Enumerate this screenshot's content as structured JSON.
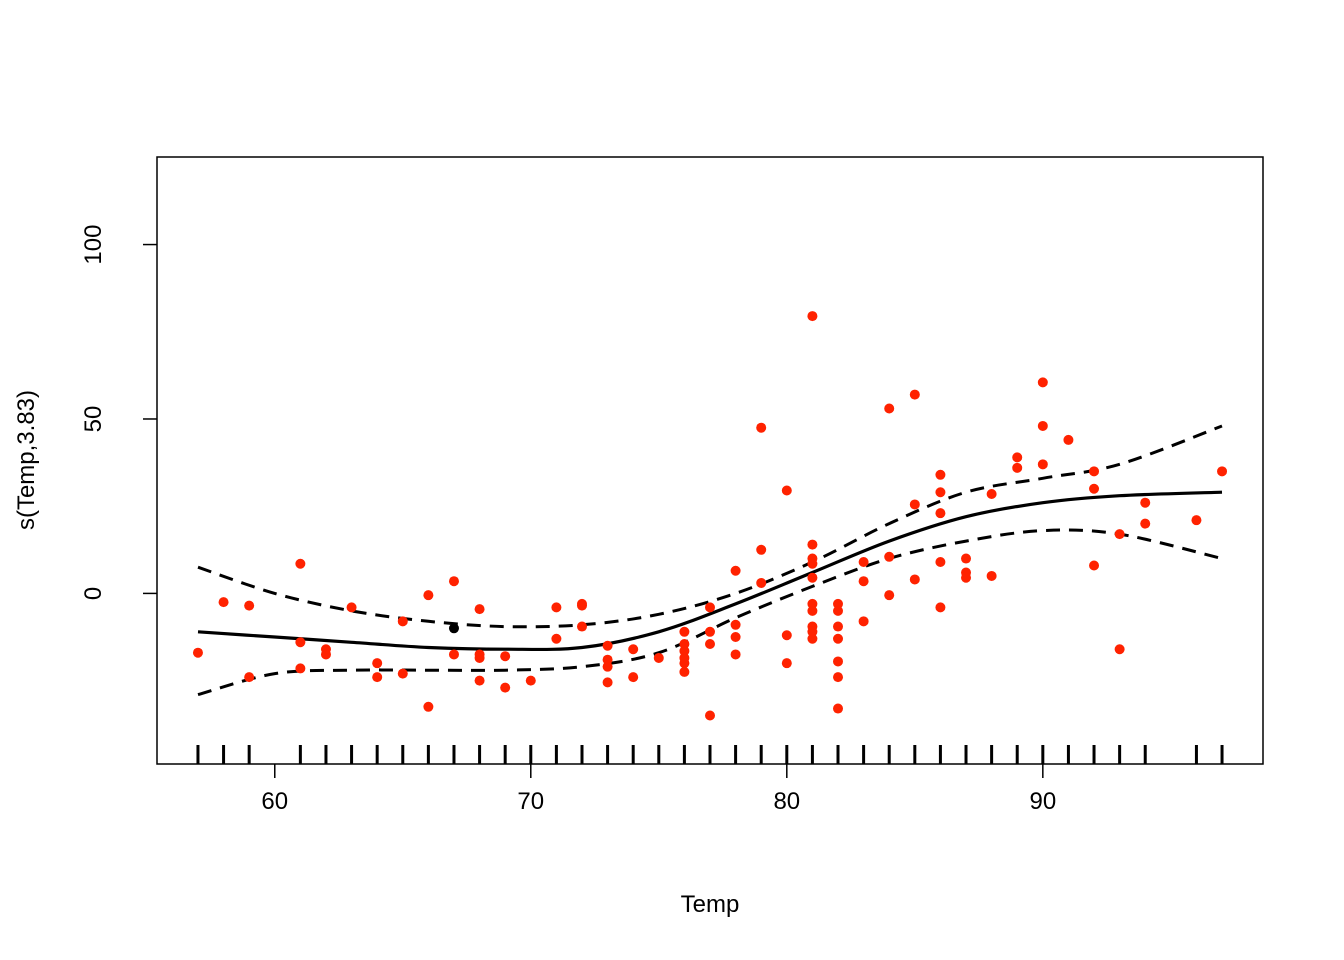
{
  "chart_data": {
    "type": "scatter",
    "title": "",
    "xlabel": "Temp",
    "ylabel": "s(Temp,3.83)",
    "xlim": [
      55.4,
      98.6
    ],
    "ylim": [
      -48.9,
      125.1
    ],
    "x_ticks": [
      60,
      70,
      80,
      90
    ],
    "y_ticks": [
      0,
      50,
      100
    ],
    "x_tick_labels": [
      "60",
      "70",
      "80",
      "90"
    ],
    "y_tick_labels": [
      "0",
      "50",
      "100"
    ],
    "grid": false,
    "legend": "none",
    "colors": {
      "points": "#ff2200",
      "highlight": "#000000",
      "lines": "#000000"
    },
    "smooth_fit": {
      "x": [
        57,
        60,
        63,
        66,
        69,
        72,
        75,
        78,
        81,
        84,
        87,
        90,
        93,
        97
      ],
      "y": [
        -11,
        -12.5,
        -14,
        -15.5,
        -16,
        -15.5,
        -11,
        -3,
        6,
        15,
        22,
        26,
        28,
        29
      ]
    },
    "upper_ci": {
      "x": [
        57,
        60,
        63,
        66,
        69,
        72,
        75,
        78,
        81,
        84,
        87,
        90,
        93,
        97
      ],
      "y": [
        7.5,
        0,
        -5,
        -8,
        -9.5,
        -9,
        -6,
        0,
        9,
        20,
        29,
        33,
        37,
        48
      ]
    },
    "lower_ci": {
      "x": [
        57,
        60,
        63,
        66,
        69,
        72,
        75,
        78,
        81,
        84,
        87,
        90,
        93,
        97
      ],
      "y": [
        -29,
        -23,
        -22,
        -22,
        -22,
        -21,
        -17,
        -7,
        2,
        10,
        15,
        18,
        17,
        10
      ]
    },
    "points": [
      {
        "x": 57,
        "y": -17
      },
      {
        "x": 58,
        "y": -2.5
      },
      {
        "x": 59,
        "y": -3.5
      },
      {
        "x": 59,
        "y": -24
      },
      {
        "x": 61,
        "y": 8.5
      },
      {
        "x": 61,
        "y": -14
      },
      {
        "x": 61,
        "y": -21.5
      },
      {
        "x": 62,
        "y": -16
      },
      {
        "x": 62,
        "y": -17.5
      },
      {
        "x": 63,
        "y": -4
      },
      {
        "x": 64,
        "y": -20
      },
      {
        "x": 64,
        "y": -24
      },
      {
        "x": 65,
        "y": -8
      },
      {
        "x": 65,
        "y": -23
      },
      {
        "x": 66,
        "y": -0.5
      },
      {
        "x": 66,
        "y": -32.5
      },
      {
        "x": 67,
        "y": 3.5
      },
      {
        "x": 67,
        "y": -17.5
      },
      {
        "x": 68,
        "y": -4.5
      },
      {
        "x": 68,
        "y": -17.5
      },
      {
        "x": 68,
        "y": -18.5
      },
      {
        "x": 68,
        "y": -25
      },
      {
        "x": 69,
        "y": -18
      },
      {
        "x": 69,
        "y": -27
      },
      {
        "x": 70,
        "y": -25
      },
      {
        "x": 71,
        "y": -4
      },
      {
        "x": 71,
        "y": -13
      },
      {
        "x": 72,
        "y": -3
      },
      {
        "x": 72,
        "y": -3.5
      },
      {
        "x": 72,
        "y": -9.5
      },
      {
        "x": 73,
        "y": -15
      },
      {
        "x": 73,
        "y": -19
      },
      {
        "x": 73,
        "y": -21
      },
      {
        "x": 73,
        "y": -25.5
      },
      {
        "x": 74,
        "y": -16
      },
      {
        "x": 74,
        "y": -24
      },
      {
        "x": 75,
        "y": -18.5
      },
      {
        "x": 76,
        "y": -11
      },
      {
        "x": 76,
        "y": -14.5
      },
      {
        "x": 76,
        "y": -16.5
      },
      {
        "x": 76,
        "y": -18.5
      },
      {
        "x": 76,
        "y": -20
      },
      {
        "x": 76,
        "y": -22.5
      },
      {
        "x": 77,
        "y": -4
      },
      {
        "x": 77,
        "y": -11
      },
      {
        "x": 77,
        "y": -14.5
      },
      {
        "x": 77,
        "y": -35
      },
      {
        "x": 78,
        "y": 6.5
      },
      {
        "x": 78,
        "y": -9
      },
      {
        "x": 78,
        "y": -12.5
      },
      {
        "x": 78,
        "y": -17.5
      },
      {
        "x": 79,
        "y": 47.5
      },
      {
        "x": 79,
        "y": 12.5
      },
      {
        "x": 79,
        "y": 3
      },
      {
        "x": 80,
        "y": 29.5
      },
      {
        "x": 80,
        "y": -12
      },
      {
        "x": 80,
        "y": -20
      },
      {
        "x": 81,
        "y": 79.5
      },
      {
        "x": 81,
        "y": 14
      },
      {
        "x": 81,
        "y": 10
      },
      {
        "x": 81,
        "y": 8.5
      },
      {
        "x": 81,
        "y": 4.5
      },
      {
        "x": 81,
        "y": -3
      },
      {
        "x": 81,
        "y": -5
      },
      {
        "x": 81,
        "y": -9.5
      },
      {
        "x": 81,
        "y": -11
      },
      {
        "x": 81,
        "y": -13
      },
      {
        "x": 82,
        "y": -3
      },
      {
        "x": 82,
        "y": -5
      },
      {
        "x": 82,
        "y": -9.5
      },
      {
        "x": 82,
        "y": -13
      },
      {
        "x": 82,
        "y": -19.5
      },
      {
        "x": 82,
        "y": -24
      },
      {
        "x": 82,
        "y": -33
      },
      {
        "x": 83,
        "y": 9
      },
      {
        "x": 83,
        "y": 3.5
      },
      {
        "x": 83,
        "y": -8
      },
      {
        "x": 84,
        "y": 53
      },
      {
        "x": 84,
        "y": 10.5
      },
      {
        "x": 84,
        "y": -0.5
      },
      {
        "x": 85,
        "y": 57
      },
      {
        "x": 85,
        "y": 25.5
      },
      {
        "x": 85,
        "y": 4
      },
      {
        "x": 86,
        "y": 34
      },
      {
        "x": 86,
        "y": 29
      },
      {
        "x": 86,
        "y": 23
      },
      {
        "x": 86,
        "y": 9
      },
      {
        "x": 86,
        "y": -4
      },
      {
        "x": 87,
        "y": 10
      },
      {
        "x": 87,
        "y": 6
      },
      {
        "x": 87,
        "y": 4.5
      },
      {
        "x": 88,
        "y": 28.5
      },
      {
        "x": 88,
        "y": 5
      },
      {
        "x": 89,
        "y": 39
      },
      {
        "x": 89,
        "y": 36
      },
      {
        "x": 90,
        "y": 60.5
      },
      {
        "x": 90,
        "y": 48
      },
      {
        "x": 90,
        "y": 37
      },
      {
        "x": 91,
        "y": 44
      },
      {
        "x": 92,
        "y": 35
      },
      {
        "x": 92,
        "y": 30
      },
      {
        "x": 92,
        "y": 8
      },
      {
        "x": 93,
        "y": 17
      },
      {
        "x": 93,
        "y": -16
      },
      {
        "x": 94,
        "y": 26
      },
      {
        "x": 94,
        "y": 20
      },
      {
        "x": 96,
        "y": 21
      },
      {
        "x": 97,
        "y": 35
      }
    ],
    "highlight_point": {
      "x": 67,
      "y": -10
    },
    "rug_x": [
      57,
      58,
      59,
      61,
      62,
      63,
      64,
      65,
      66,
      67,
      68,
      69,
      70,
      71,
      72,
      73,
      74,
      75,
      76,
      77,
      78,
      79,
      80,
      81,
      82,
      83,
      84,
      85,
      86,
      87,
      88,
      89,
      90,
      91,
      92,
      93,
      94,
      96,
      97
    ]
  }
}
